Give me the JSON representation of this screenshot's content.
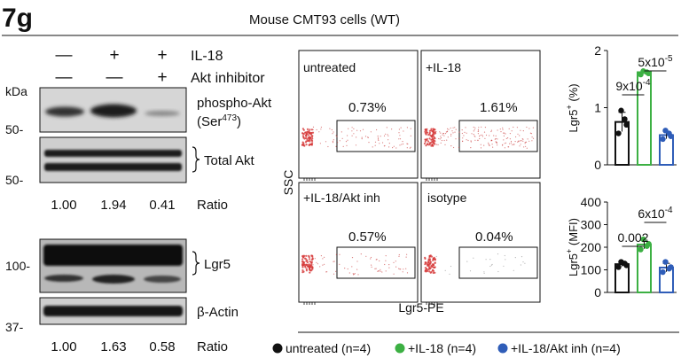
{
  "panel_label": "7g",
  "title": "Mouse CMT93 cells (WT)",
  "treatments": {
    "rows": [
      {
        "label": "IL-18",
        "marks": [
          "—",
          "+",
          "+"
        ]
      },
      {
        "label": "Akt inhibitor",
        "marks": [
          "—",
          "—",
          "+"
        ]
      }
    ]
  },
  "blots": {
    "kda_label": "kDa",
    "phospho_label": "phospho-Akt",
    "phospho_site_prefix": "(Ser",
    "phospho_site_sup": "473",
    "phospho_site_suffix": ")",
    "total_label": "Total Akt",
    "lgr5_label": "Lgr5",
    "actin_label": "β-Actin",
    "marker_50a": "50-",
    "marker_50b": "50-",
    "marker_100": "100-",
    "marker_37": "37-",
    "ratio_label": "Ratio",
    "ratio_akt": [
      "1.00",
      "1.94",
      "0.41"
    ],
    "ratio_lgr5": [
      "1.00",
      "1.63",
      "0.58"
    ]
  },
  "flow": {
    "y_label": "SSC",
    "x_label": "Lgr5-PE",
    "panels": [
      {
        "name": "untreated",
        "pct": "0.73%",
        "color": "#2b5d9e"
      },
      {
        "name": "+IL-18",
        "pct": "1.61%",
        "color": "#2b5d9e"
      },
      {
        "name": "+IL-18/Akt inh",
        "pct": "0.57%",
        "color": "#2b5d9e"
      },
      {
        "name": "isotype",
        "pct": "0.04%",
        "color": "#111111"
      }
    ]
  },
  "chart_data": [
    {
      "type": "bar",
      "categories": [
        "untreated",
        "+IL-18",
        "+IL-18/Akt inh"
      ],
      "values": [
        0.75,
        1.62,
        0.52
      ],
      "points": [
        [
          0.55,
          0.8,
          0.95,
          0.7
        ],
        [
          1.58,
          1.62,
          1.64,
          1.6
        ],
        [
          0.45,
          0.55,
          0.6,
          0.5
        ]
      ],
      "ylabel_main": "Lgr5",
      "ylabel_sup": "+",
      "ylabel_unit": " (%)",
      "yticks": [
        "0",
        "1",
        "2"
      ],
      "ylim": [
        0,
        2
      ],
      "annotations": [
        {
          "text": "9x10",
          "sup": "-4",
          "pair": [
            0,
            1
          ]
        },
        {
          "text": "5x10",
          "sup": "-5",
          "pair": [
            1,
            2
          ]
        }
      ]
    },
    {
      "type": "bar",
      "categories": [
        "untreated",
        "+IL-18",
        "+IL-18/Akt inh"
      ],
      "values": [
        125,
        212,
        110
      ],
      "points": [
        [
          112,
          128,
          135,
          120
        ],
        [
          190,
          205,
          235,
          215
        ],
        [
          90,
          105,
          135,
          112
        ]
      ],
      "ylabel_main": "Lgr5",
      "ylabel_sup": "+",
      "ylabel_unit": " (MFI)",
      "yticks": [
        "0",
        "100",
        "200",
        "300",
        "400"
      ],
      "ylim": [
        0,
        400
      ],
      "annotations": [
        {
          "text": "0.002",
          "sup": "",
          "pair": [
            0,
            1
          ]
        },
        {
          "text": "6x10",
          "sup": "-4",
          "pair": [
            1,
            2
          ]
        }
      ]
    }
  ],
  "legend": [
    {
      "label": "untreated (n=4)",
      "color": "#111111"
    },
    {
      "label": "+IL-18 (n=4)",
      "color": "#3cb043"
    },
    {
      "label": "+IL-18/Akt inh (n=4)",
      "color": "#2f5db8"
    }
  ]
}
